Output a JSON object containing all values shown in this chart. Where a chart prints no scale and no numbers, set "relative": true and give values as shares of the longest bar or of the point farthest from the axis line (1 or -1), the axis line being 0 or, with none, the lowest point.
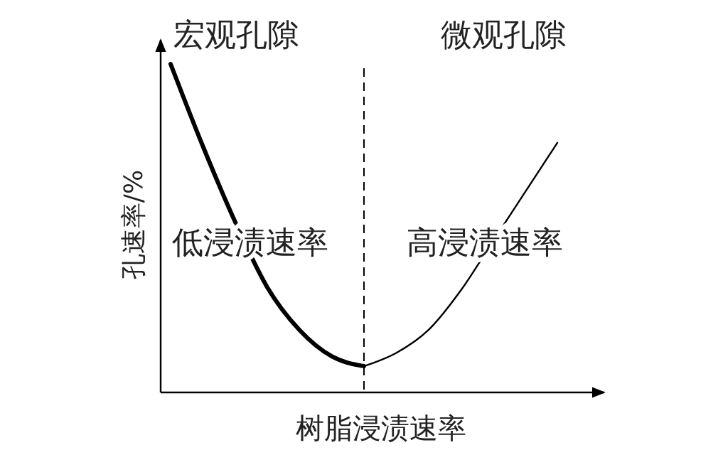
{
  "chart_data": {
    "type": "line",
    "relative": true,
    "xlabel": "树脂浸渍速率",
    "ylabel": "孔速率/%",
    "categories": [
      null,
      null,
      null,
      null,
      null,
      null,
      null,
      null,
      null,
      null,
      null,
      null,
      null
    ],
    "series": [
      {
        "color": "#000000",
        "values": [
          1.0,
          0.75,
          0.52,
          0.32,
          0.19,
          0.11,
          0.08,
          null,
          null,
          null,
          null,
          null,
          null
        ]
      },
      {
        "color": "#000000",
        "values": [
          null,
          null,
          null,
          null,
          null,
          null,
          0.08,
          0.12,
          0.19,
          0.31,
          0.46,
          0.61,
          0.76
        ]
      }
    ],
    "annotations": [
      "宏观孔隙",
      "微观孔隙",
      "低浸渍速率",
      "高浸渍速率"
    ],
    "grid": false,
    "legend": false,
    "marker": "none",
    "line_style": "solid"
  }
}
